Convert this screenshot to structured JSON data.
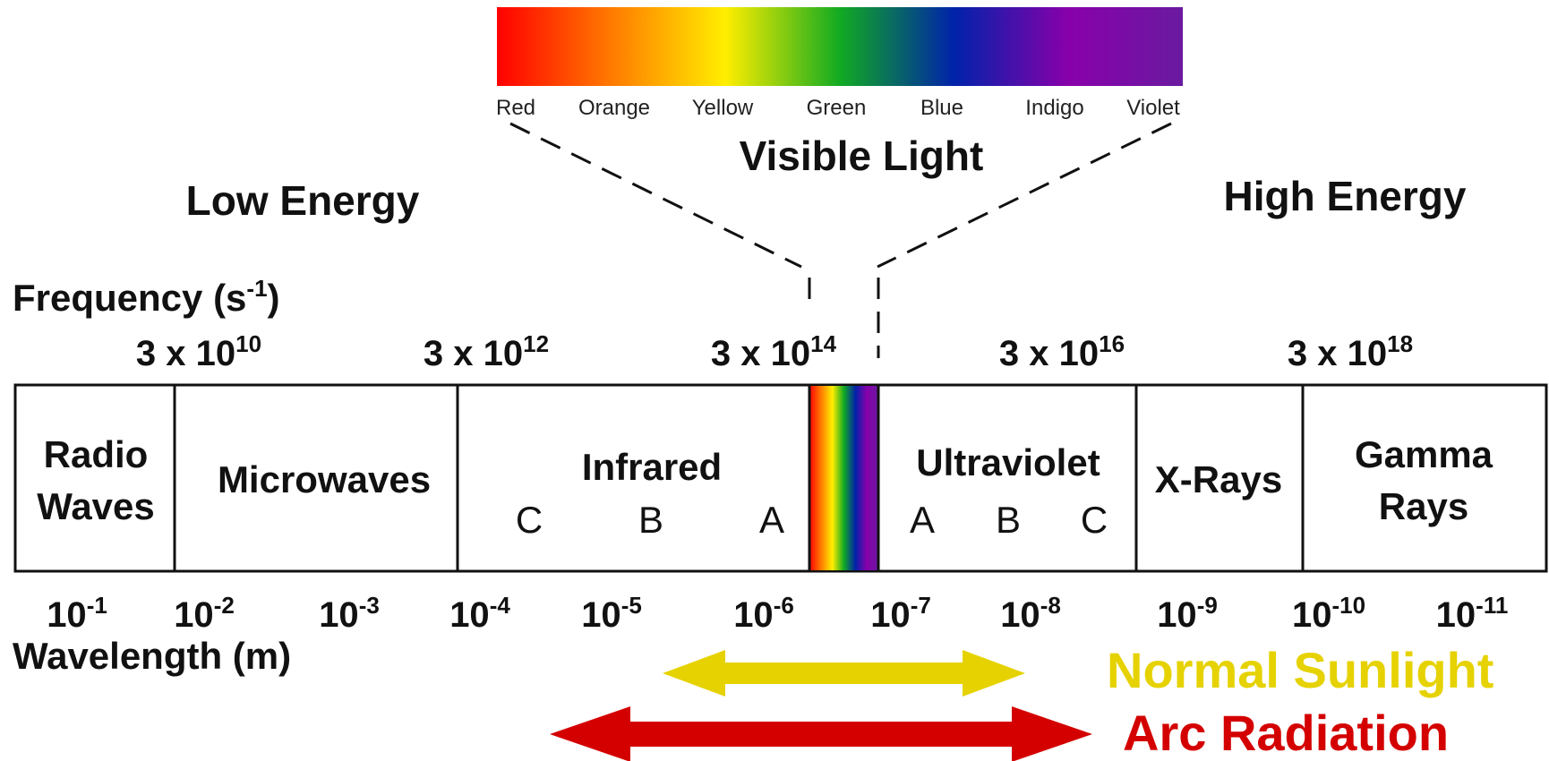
{
  "visible_light": {
    "title": "Visible Light",
    "colors": [
      "Red",
      "Orange",
      "Yellow",
      "Green",
      "Blue",
      "Indigo",
      "Violet"
    ],
    "gradient": [
      "#ff0000",
      "#ff7a00",
      "#ffee00",
      "#11aa22",
      "#0022aa",
      "#8800aa",
      "#6a1aa0"
    ]
  },
  "energy": {
    "low": "Low Energy",
    "high": "High Energy"
  },
  "frequency": {
    "label_base": "Frequency (s",
    "label_exp": "-1",
    "label_close": ")",
    "ticks": [
      {
        "base": "3 x 10",
        "exp": "10"
      },
      {
        "base": "3 x 10",
        "exp": "12"
      },
      {
        "base": "3 x 10",
        "exp": "14"
      },
      {
        "base": "3 x 10",
        "exp": "16"
      },
      {
        "base": "3 x 10",
        "exp": "18"
      }
    ]
  },
  "bands": [
    {
      "name": "Radio Waves",
      "lines": [
        "Radio",
        "Waves"
      ]
    },
    {
      "name": "Microwaves",
      "lines": [
        "Microwaves"
      ]
    },
    {
      "name": "Infrared",
      "lines": [
        "Infrared"
      ],
      "sub": [
        "C",
        "B",
        "A"
      ]
    },
    {
      "name": "Visible",
      "lines": []
    },
    {
      "name": "Ultraviolet",
      "lines": [
        "Ultraviolet"
      ],
      "sub": [
        "A",
        "B",
        "C"
      ]
    },
    {
      "name": "X-Rays",
      "lines": [
        "X-Rays"
      ]
    },
    {
      "name": "Gamma Rays",
      "lines": [
        "Gamma",
        "Rays"
      ]
    }
  ],
  "wavelength": {
    "label": "Wavelength (m)",
    "ticks": [
      {
        "base": "10",
        "exp": "-1"
      },
      {
        "base": "10",
        "exp": "-2"
      },
      {
        "base": "10",
        "exp": "-3"
      },
      {
        "base": "10",
        "exp": "-4"
      },
      {
        "base": "10",
        "exp": "-5"
      },
      {
        "base": "10",
        "exp": "-6"
      },
      {
        "base": "10",
        "exp": "-7"
      },
      {
        "base": "10",
        "exp": "-8"
      },
      {
        "base": "10",
        "exp": "-9"
      },
      {
        "base": "10",
        "exp": "-10"
      },
      {
        "base": "10",
        "exp": "-11"
      }
    ]
  },
  "ranges": [
    {
      "label": "Normal Sunlight",
      "color": "#e6d200"
    },
    {
      "label": "Arc Radiation",
      "color": "#d40000"
    }
  ]
}
